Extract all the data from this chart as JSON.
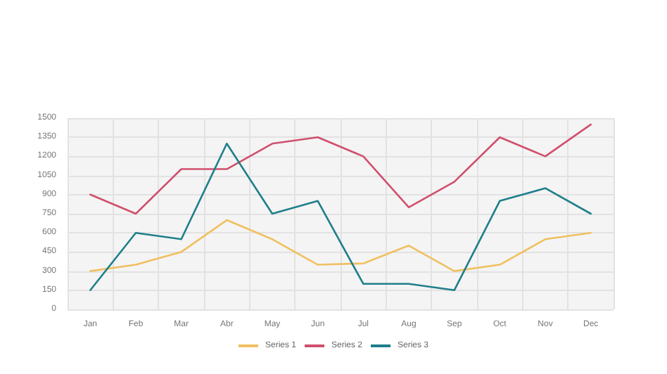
{
  "chart_data": {
    "type": "line",
    "categories": [
      "Jan",
      "Feb",
      "Mar",
      "Abr",
      "May",
      "Jun",
      "Jul",
      "Aug",
      "Sep",
      "Oct",
      "Nov",
      "Dec"
    ],
    "series": [
      {
        "name": "Series 1",
        "color": "#f0c060",
        "values": [
          300,
          350,
          450,
          700,
          550,
          350,
          360,
          500,
          300,
          350,
          550,
          600
        ]
      },
      {
        "name": "Series 2",
        "color": "#d0506e",
        "values": [
          900,
          750,
          1100,
          1100,
          1300,
          1350,
          1200,
          800,
          1000,
          1350,
          1200,
          1450
        ]
      },
      {
        "name": "Series 3",
        "color": "#1f7f8a",
        "values": [
          150,
          600,
          550,
          1300,
          750,
          850,
          200,
          200,
          150,
          850,
          950,
          750
        ]
      }
    ],
    "ylim": [
      0,
      1500
    ],
    "yticks": [
      0,
      150,
      300,
      450,
      600,
      750,
      900,
      1050,
      1200,
      1350,
      1500
    ],
    "grid": true,
    "legend": "bottom",
    "marker": "none",
    "line_style": "solid"
  }
}
